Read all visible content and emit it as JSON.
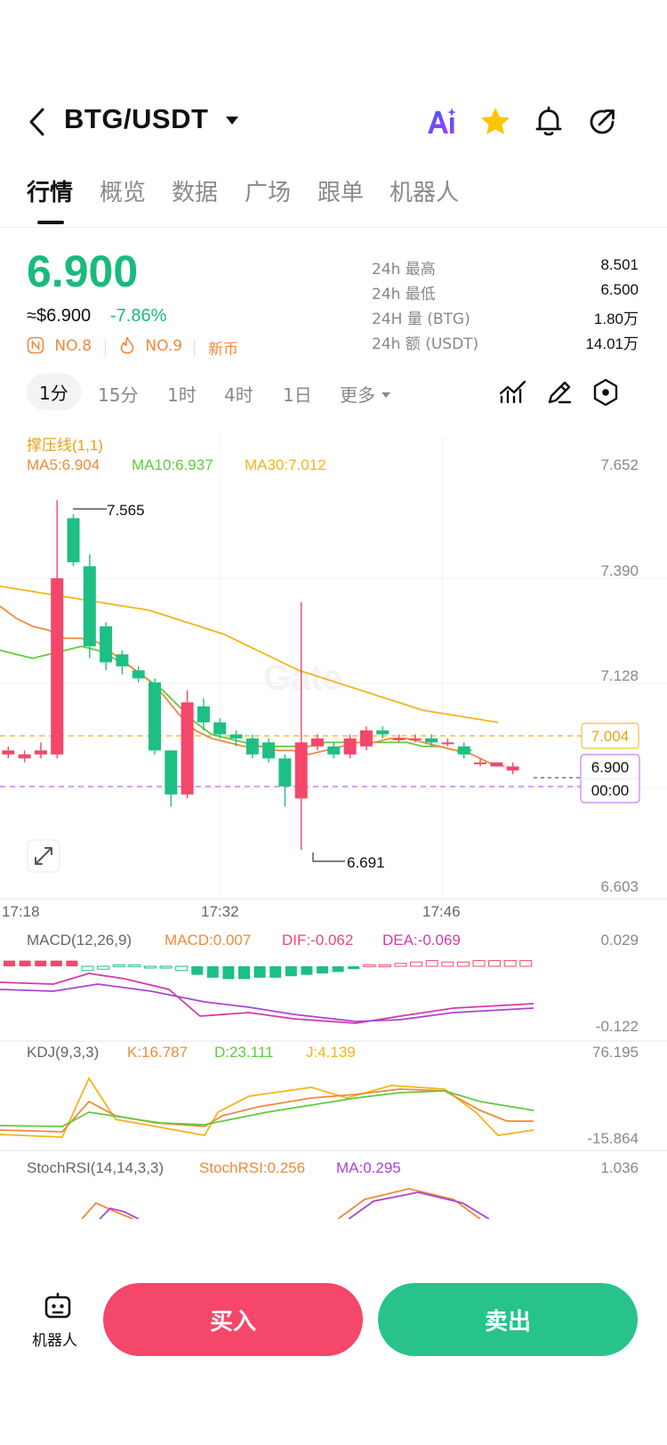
{
  "header": {
    "pair": "BTG/USDT",
    "ai_label": "AI"
  },
  "tabs": [
    "行情",
    "概览",
    "数据",
    "广场",
    "跟单",
    "机器人"
  ],
  "ticker": {
    "price": "6.900",
    "usd": "≈$6.900",
    "change": "-7.86%",
    "tags": [
      "NO.8",
      "NO.9",
      "新币"
    ]
  },
  "stats": [
    {
      "label": "24h  最高",
      "value": "8.501"
    },
    {
      "label": "24h  最低",
      "value": "6.500"
    },
    {
      "label": "24H  量 (BTG)",
      "value": "1.80万"
    },
    {
      "label": "24h  额 (USDT)",
      "value": "14.01万"
    }
  ],
  "intervals": [
    "1分",
    "15分",
    "1时",
    "4时",
    "1日",
    "更多"
  ],
  "chart_data": {
    "type": "candlestick",
    "indicator_title": "撑压线(1,1)",
    "ma_legend": [
      "MA5:6.904",
      "MA10:6.937",
      "MA30:7.012"
    ],
    "y_ticks": [
      "7.652",
      "7.390",
      "7.128",
      "6.603"
    ],
    "x_ticks": [
      "17:18",
      "17:32",
      "17:46"
    ],
    "high_label": "7.565",
    "low_label": "6.691",
    "support_resistance": "7.004",
    "last_price": "6.900",
    "countdown": "00:00",
    "candles": [
      {
        "o": 6.93,
        "h": 6.95,
        "l": 6.92,
        "c": 6.94
      },
      {
        "o": 6.93,
        "h": 6.95,
        "l": 6.92,
        "c": 6.94
      },
      {
        "o": 6.92,
        "h": 6.94,
        "l": 6.91,
        "c": 6.93
      },
      {
        "o": 6.93,
        "h": 6.96,
        "l": 6.92,
        "c": 6.94
      },
      {
        "o": 6.93,
        "h": 7.565,
        "l": 6.92,
        "c": 7.37
      },
      {
        "o": 7.52,
        "h": 7.53,
        "l": 7.4,
        "c": 7.41
      },
      {
        "o": 7.4,
        "h": 7.43,
        "l": 7.17,
        "c": 7.2
      },
      {
        "o": 7.25,
        "h": 7.26,
        "l": 7.14,
        "c": 7.16
      },
      {
        "o": 7.18,
        "h": 7.19,
        "l": 7.13,
        "c": 7.15
      },
      {
        "o": 7.14,
        "h": 7.15,
        "l": 7.11,
        "c": 7.12
      },
      {
        "o": 7.11,
        "h": 7.12,
        "l": 6.93,
        "c": 6.94
      },
      {
        "o": 6.94,
        "h": 6.94,
        "l": 6.8,
        "c": 6.83
      },
      {
        "o": 6.83,
        "h": 7.09,
        "l": 6.82,
        "c": 7.06
      },
      {
        "o": 7.05,
        "h": 7.07,
        "l": 6.99,
        "c": 7.01
      },
      {
        "o": 7.01,
        "h": 7.02,
        "l": 6.97,
        "c": 6.98
      },
      {
        "o": 6.98,
        "h": 6.99,
        "l": 6.95,
        "c": 6.97
      },
      {
        "o": 6.97,
        "h": 6.98,
        "l": 6.92,
        "c": 6.93
      },
      {
        "o": 6.96,
        "h": 6.97,
        "l": 6.91,
        "c": 6.92
      },
      {
        "o": 6.92,
        "h": 6.93,
        "l": 6.8,
        "c": 6.85
      },
      {
        "o": 6.82,
        "h": 7.31,
        "l": 6.691,
        "c": 6.96
      },
      {
        "o": 6.95,
        "h": 6.98,
        "l": 6.94,
        "c": 6.97
      },
      {
        "o": 6.95,
        "h": 6.96,
        "l": 6.92,
        "c": 6.93
      },
      {
        "o": 6.93,
        "h": 6.98,
        "l": 6.92,
        "c": 6.97
      },
      {
        "o": 6.95,
        "h": 7.0,
        "l": 6.94,
        "c": 6.99
      },
      {
        "o": 6.99,
        "h": 7.0,
        "l": 6.97,
        "c": 6.98
      },
      {
        "o": 6.97,
        "h": 6.98,
        "l": 6.96,
        "c": 6.97
      },
      {
        "o": 6.97,
        "h": 6.98,
        "l": 6.96,
        "c": 6.97
      },
      {
        "o": 6.97,
        "h": 6.98,
        "l": 6.95,
        "c": 6.96
      },
      {
        "o": 6.96,
        "h": 6.97,
        "l": 6.95,
        "c": 6.96
      },
      {
        "o": 6.95,
        "h": 6.96,
        "l": 6.92,
        "c": 6.93
      },
      {
        "o": 6.91,
        "h": 6.92,
        "l": 6.9,
        "c": 6.91
      },
      {
        "o": 6.9,
        "h": 6.91,
        "l": 6.9,
        "c": 6.91
      },
      {
        "o": 6.89,
        "h": 6.91,
        "l": 6.88,
        "c": 6.9
      }
    ],
    "ma5": [
      7.3,
      7.27,
      7.25,
      7.24,
      7.22,
      7.22,
      7.21,
      7.18,
      7.15,
      7.12,
      7.08,
      7.03,
      6.99,
      6.97,
      6.96,
      6.95,
      6.95,
      6.94,
      6.94,
      6.93,
      6.94,
      6.95,
      6.96,
      6.96,
      6.97,
      6.97,
      6.96,
      6.95,
      6.94,
      6.93,
      6.91,
      6.9
    ],
    "ma10": [
      7.19,
      7.18,
      7.17,
      7.18,
      7.19,
      7.2,
      7.19,
      7.17,
      7.15,
      7.12,
      7.09,
      7.05,
      7.01,
      6.98,
      6.97,
      6.96,
      6.95,
      6.95,
      6.95,
      6.95,
      6.96,
      6.96,
      6.96,
      6.96,
      6.96,
      6.96,
      6.95,
      6.95,
      6.94,
      6.94
    ],
    "ma30": [
      7.35,
      7.34,
      7.33,
      7.32,
      7.31,
      7.3,
      7.29,
      7.27,
      7.25,
      7.23,
      7.2,
      7.17,
      7.14,
      7.12,
      7.1,
      7.08,
      7.06,
      7.04,
      7.03,
      7.02,
      7.01
    ],
    "macd": {
      "legend": [
        "MACD(12,26,9)",
        "MACD:0.007",
        "DIF:-0.062",
        "DEA:-0.069"
      ],
      "y_ticks": [
        "0.029",
        "-0.122"
      ]
    },
    "kdj": {
      "legend": [
        "KDJ(9,3,3)",
        "K:16.787",
        "D:23.111",
        "J:4.139"
      ],
      "y_ticks": [
        "76.195",
        "-15.864"
      ]
    },
    "stochrsi": {
      "legend": [
        "StochRSI(14,14,3,3)",
        "StochRSI:0.256",
        "MA:0.295"
      ],
      "y_ticks": [
        "1.036"
      ]
    }
  },
  "bottom": {
    "bot_label": "机器人",
    "buy_label": "买入",
    "sell_label": "卖出"
  },
  "colors": {
    "up": "#f4476a",
    "down": "#1dbf84",
    "ma5": "#f08a3c",
    "ma10": "#5ecb3d",
    "ma30": "#f2b51c",
    "dif": "#d63aa6",
    "dea": "#a845d6"
  }
}
